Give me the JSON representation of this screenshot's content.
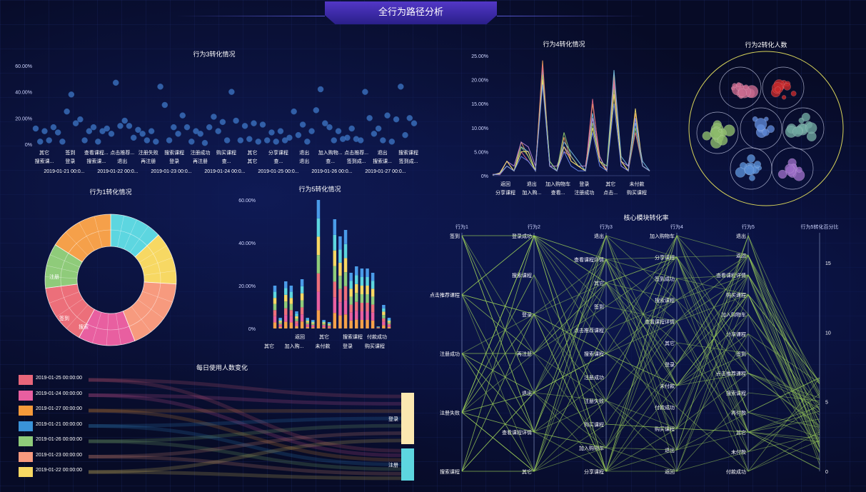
{
  "header": {
    "title": "全行为路径分析"
  },
  "panels": {
    "b3": {
      "title": "行为3转化情况"
    },
    "b4": {
      "title": "行为4转化情况"
    },
    "b2": {
      "title": "行为2转化人数"
    },
    "b1": {
      "title": "行为1转化情况"
    },
    "b5": {
      "title": "行为5转化情况"
    },
    "daily": {
      "title": "每日使用人数变化"
    },
    "core": {
      "title": "核心模块转化率"
    }
  },
  "chart_data": [
    {
      "id": "b3",
      "type": "scatter",
      "title": "行为3转化情况",
      "y_ticks": [
        "60.00%",
        "40.00%",
        "20.00%",
        "0%"
      ],
      "ylim": [
        0,
        60
      ],
      "x_labels_row1": [
        "其它",
        "签到",
        "查看课程...",
        "点击推荐...",
        "注册失败",
        "搜索课程",
        "注册成功",
        "购买课程",
        "其它",
        "分享课程",
        "退出",
        "加入购物...",
        "点击推荐...",
        "退出",
        "搜索课程"
      ],
      "x_labels_row2": [
        "搜索课...",
        "登录",
        "搜索课...",
        "退出",
        "再注册",
        "登录",
        "再注册",
        "查...",
        "其它",
        "查...",
        "退出",
        "查...",
        "签到成...",
        "搜索课...",
        "签到成..."
      ],
      "x_labels_row3": [
        "2019-01-21 00:0...",
        "2019-01-22 00:0...",
        "2019-01-23 00:0...",
        "2019-01-24 00:0...",
        "2019-01-25 00:0...",
        "2019-01-26 00:0...",
        "2019-01-27 00:0..."
      ],
      "values": [
        12,
        2,
        10,
        3,
        13,
        9,
        2,
        25,
        38,
        16,
        19,
        3,
        10,
        13,
        2,
        10,
        12,
        8,
        47,
        14,
        18,
        14,
        5,
        11,
        8,
        3,
        10,
        2,
        44,
        30,
        3,
        13,
        8,
        22,
        13,
        2,
        10,
        8,
        1,
        13,
        21,
        10,
        17,
        3,
        40,
        18,
        3,
        14,
        4,
        16,
        2,
        15,
        3,
        9,
        2,
        10,
        3,
        5,
        25,
        7,
        15,
        2,
        10,
        26,
        42,
        16,
        13,
        3,
        10,
        4,
        5,
        12,
        4,
        3,
        40,
        20,
        8,
        12,
        3,
        22,
        2,
        19,
        44,
        7,
        20,
        16
      ]
    },
    {
      "id": "b4",
      "type": "line",
      "title": "行为4转化情况",
      "y_ticks": [
        "25.00%",
        "20.00%",
        "15.00%",
        "10.00%",
        "5.00%",
        "0%"
      ],
      "ylim": [
        0,
        25
      ],
      "x_labels_row1": [
        "返回",
        "退出",
        "加入购物车",
        "登录",
        "其它",
        "未付款"
      ],
      "x_labels_row2": [
        "分享课程",
        "加入购...",
        "查看...",
        "注册成功",
        "点击...",
        "购买课程"
      ],
      "series": [
        {
          "color": "#f5a35b",
          "values": [
            0.2,
            0.3,
            3,
            1,
            7,
            4,
            1,
            24,
            2,
            1,
            8,
            3,
            2,
            1,
            15,
            4,
            1,
            21,
            3,
            1,
            13,
            2,
            1
          ]
        },
        {
          "color": "#7ac7e8",
          "values": [
            0.2,
            0.5,
            2,
            1,
            6,
            5,
            1,
            22,
            3,
            1,
            7,
            5,
            3,
            1,
            13,
            3,
            2,
            22,
            4,
            2,
            11,
            3,
            1
          ]
        },
        {
          "color": "#c78fe0",
          "values": [
            0.1,
            0.6,
            3,
            2,
            7,
            6,
            2,
            20,
            2,
            2,
            6,
            4,
            2,
            2,
            12,
            4,
            1,
            19,
            3,
            2,
            12,
            2,
            1
          ]
        },
        {
          "color": "#e56b8a",
          "values": [
            0.3,
            0.2,
            2,
            1,
            5,
            3,
            1,
            23,
            2,
            1,
            5,
            4,
            2,
            1,
            16,
            3,
            1,
            20,
            2,
            1,
            9,
            2,
            1
          ]
        },
        {
          "color": "#9bd46e",
          "values": [
            0.2,
            0.4,
            2,
            1,
            6,
            4,
            1,
            21,
            3,
            1,
            9,
            4,
            2,
            1,
            11,
            3,
            2,
            18,
            3,
            1,
            10,
            2,
            1
          ]
        },
        {
          "color": "#f7e36b",
          "values": [
            0.1,
            0.5,
            3,
            1,
            5,
            5,
            1,
            20,
            2,
            1,
            6,
            3,
            2,
            1,
            10,
            3,
            1,
            17,
            3,
            1,
            14,
            2,
            1
          ]
        },
        {
          "color": "#6f8cf0",
          "values": [
            0.2,
            0.3,
            2,
            1,
            4,
            3,
            1,
            19,
            2,
            1,
            5,
            2,
            1,
            1,
            9,
            2,
            1,
            15,
            2,
            1,
            12,
            2,
            1
          ]
        }
      ]
    },
    {
      "id": "b2",
      "type": "circle-pack",
      "title": "行为2转化人数",
      "groups": [
        {
          "color": "#c96a8f"
        },
        {
          "color": "#c7292c"
        },
        {
          "color": "#8dbb6b"
        },
        {
          "color": "#5d86d4"
        },
        {
          "color": "#6fa7a0"
        },
        {
          "color": "#5a8fd6"
        },
        {
          "color": "#9a6bc6"
        }
      ]
    },
    {
      "id": "b1",
      "type": "pie",
      "title": "行为1转化情况",
      "outer_labels": [
        "注册",
        "签到",
        "搜索"
      ],
      "slices": [
        {
          "color": "#5dd6e0",
          "value": 13
        },
        {
          "color": "#f7d863",
          "value": 13
        },
        {
          "color": "#f79a7e",
          "value": 18
        },
        {
          "color": "#e85fa0",
          "value": 14
        },
        {
          "color": "#ec6f7a",
          "value": 15
        },
        {
          "color": "#8fcb7a",
          "value": 11
        },
        {
          "color": "#f5a04a",
          "value": 16
        }
      ]
    },
    {
      "id": "b5",
      "type": "bar",
      "title": "行为5转化情况",
      "y_ticks": [
        "60.00%",
        "40.00%",
        "20.00%",
        "0%"
      ],
      "ylim": [
        0,
        60
      ],
      "x_labels_row1": [
        "返回",
        "其它",
        "搜索课程",
        "付款成功"
      ],
      "x_labels_row2": [
        "其它",
        "加入购...",
        "未付款",
        "登录",
        "购买课程"
      ],
      "colors": [
        "#f5a04a",
        "#e85fa0",
        "#ec6f7a",
        "#8fcb7a",
        "#f7d863",
        "#5dd6e0",
        "#4a9be8"
      ],
      "values": [
        20,
        5,
        22,
        20,
        8,
        23,
        5,
        4,
        60,
        4,
        3,
        51,
        43,
        46,
        26,
        29,
        28,
        28,
        26,
        1,
        11,
        5
      ]
    },
    {
      "id": "daily",
      "type": "sankey",
      "title": "每日使用人数变化",
      "sources": [
        {
          "label": "2019-01-25 00:00:00",
          "color": "#e8667a"
        },
        {
          "label": "2019-01-24 00:00:00",
          "color": "#e85fa0"
        },
        {
          "label": "2019-01-27 00:00:00",
          "color": "#f59a3a"
        },
        {
          "label": "2019-01-21 00:00:00",
          "color": "#3a93d8"
        },
        {
          "label": "2019-01-26 00:00:00",
          "color": "#8fcb7a"
        },
        {
          "label": "2019-01-23 00:00:00",
          "color": "#f79a7e"
        },
        {
          "label": "2019-01-22 00:00:00",
          "color": "#f7d863"
        }
      ],
      "targets": [
        {
          "label": "登录",
          "color": "#fbe7b0"
        },
        {
          "label": "注册",
          "color": "#5dd6e0"
        }
      ]
    },
    {
      "id": "core",
      "type": "parallel",
      "title": "核心模块转化率",
      "axes": [
        {
          "name": "行为1",
          "labels": [
            "签到",
            "点击推荐课程",
            "注册成功",
            "注册失败",
            "搜索课程"
          ]
        },
        {
          "name": "行为2",
          "labels": [
            "登录成功",
            "搜索课程",
            "登录",
            "再注册",
            "退出",
            "查看课程详情",
            "其它"
          ]
        },
        {
          "name": "行为3",
          "labels": [
            "退出",
            "查看课程详情",
            "其它",
            "签到",
            "点击推荐课程",
            "搜索课程",
            "注册成功",
            "注册失败",
            "购买课程",
            "加入购物车",
            "分享课程"
          ]
        },
        {
          "name": "行为4",
          "labels": [
            "加入购物车",
            "分享课程",
            "签到成功",
            "搜索课程",
            "查看课程详情",
            "其它",
            "登录",
            "未付款",
            "付款成功",
            "购买课程",
            "退出",
            "返回"
          ]
        },
        {
          "name": "行为5",
          "labels": [
            "退出",
            "返回",
            "查看课程详情",
            "购买课程",
            "加入购物车",
            "分享课程",
            "签到",
            "点击推荐课程",
            "搜索课程",
            "再付款",
            "其它",
            "未付款",
            "付款成功"
          ]
        },
        {
          "name": "行为5转化百分比",
          "labels": [
            "15",
            "10",
            "5",
            "0"
          ]
        }
      ]
    }
  ]
}
